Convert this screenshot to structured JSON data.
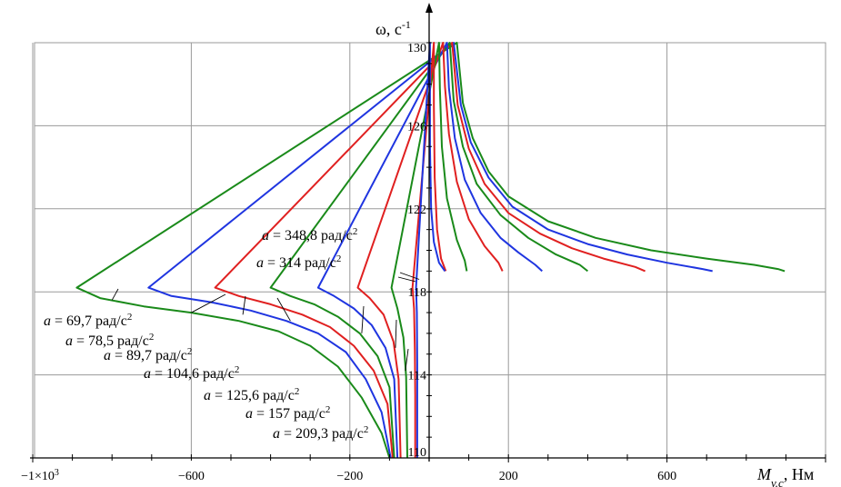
{
  "chart_data": {
    "type": "line",
    "xlabel": "M",
    "xlabel_sub": "v.c",
    "xlabel_unit": ", Нм",
    "ylabel": "ω, с",
    "ylabel_sup": "-1",
    "xlim": [
      -1000,
      1000
    ],
    "ylim": [
      110,
      130
    ],
    "grid": true,
    "x_tick_labels": [
      {
        "v": -1000,
        "base": "−1×10",
        "sup": "3"
      },
      {
        "v": -600,
        "base": "−600",
        "sup": ""
      },
      {
        "v": -200,
        "base": "−200",
        "sup": ""
      },
      {
        "v": 200,
        "base": "200",
        "sup": ""
      },
      {
        "v": 600,
        "base": "600",
        "sup": ""
      }
    ],
    "y_tick_labels": [
      {
        "v": 110,
        "t": "110"
      },
      {
        "v": 114,
        "t": "114"
      },
      {
        "v": 118,
        "t": "118"
      },
      {
        "v": 122,
        "t": "122"
      },
      {
        "v": 126,
        "t": "126"
      },
      {
        "v": 130,
        "t": "130"
      }
    ],
    "series": [
      {
        "name": "a = 69,7 рад/с2",
        "color": "#1a8a1a",
        "upper": [
          [
            897,
            119.0
          ],
          [
            880,
            119.1
          ],
          [
            820,
            119.3
          ],
          [
            700,
            119.6
          ],
          [
            560,
            120.0
          ],
          [
            420,
            120.6
          ],
          [
            300,
            121.4
          ],
          [
            200,
            122.6
          ],
          [
            150,
            123.8
          ],
          [
            110,
            125.4
          ],
          [
            85,
            127.1
          ],
          [
            70,
            130
          ]
        ],
        "lower": [
          [
            -889,
            118.2
          ],
          [
            -830,
            117.7
          ],
          [
            -720,
            117.3
          ],
          [
            -600,
            117.0
          ],
          [
            -480,
            116.6
          ],
          [
            -380,
            116.1
          ],
          [
            -300,
            115.4
          ],
          [
            -230,
            114.4
          ],
          [
            -170,
            112.9
          ],
          [
            -120,
            111.2
          ],
          [
            -100,
            110
          ]
        ]
      },
      {
        "name": "a = 78,5 рад/с2",
        "color": "#1f35e0",
        "upper": [
          [
            715,
            119.0
          ],
          [
            690,
            119.1
          ],
          [
            600,
            119.4
          ],
          [
            500,
            119.8
          ],
          [
            400,
            120.3
          ],
          [
            300,
            121.0
          ],
          [
            210,
            122.1
          ],
          [
            150,
            123.5
          ],
          [
            105,
            125.2
          ],
          [
            80,
            127.0
          ],
          [
            62,
            130
          ]
        ],
        "lower": [
          [
            -708,
            118.2
          ],
          [
            -650,
            117.8
          ],
          [
            -550,
            117.5
          ],
          [
            -450,
            117.1
          ],
          [
            -360,
            116.6
          ],
          [
            -280,
            116.0
          ],
          [
            -210,
            115.1
          ],
          [
            -160,
            113.8
          ],
          [
            -120,
            112.2
          ],
          [
            -97,
            110
          ]
        ]
      },
      {
        "name": "a = 89,7 рад/с2",
        "color": "#e02020",
        "upper": [
          [
            545,
            119.0
          ],
          [
            520,
            119.2
          ],
          [
            440,
            119.6
          ],
          [
            360,
            120.1
          ],
          [
            280,
            120.8
          ],
          [
            200,
            121.8
          ],
          [
            140,
            123.2
          ],
          [
            100,
            124.9
          ],
          [
            72,
            127.0
          ],
          [
            58,
            130
          ]
        ],
        "lower": [
          [
            -540,
            118.2
          ],
          [
            -480,
            117.8
          ],
          [
            -400,
            117.4
          ],
          [
            -320,
            116.9
          ],
          [
            -250,
            116.3
          ],
          [
            -190,
            115.4
          ],
          [
            -140,
            114.2
          ],
          [
            -105,
            112.6
          ],
          [
            -92,
            110
          ]
        ]
      },
      {
        "name": "a = 104,6 рад/с2",
        "color": "#1a8a1a",
        "upper": [
          [
            400,
            119.0
          ],
          [
            380,
            119.3
          ],
          [
            320,
            119.8
          ],
          [
            250,
            120.6
          ],
          [
            180,
            121.7
          ],
          [
            120,
            123.2
          ],
          [
            85,
            125.0
          ],
          [
            62,
            127.2
          ],
          [
            52,
            130
          ]
        ],
        "lower": [
          [
            -400,
            118.2
          ],
          [
            -350,
            117.8
          ],
          [
            -290,
            117.4
          ],
          [
            -230,
            116.8
          ],
          [
            -175,
            116.0
          ],
          [
            -130,
            114.9
          ],
          [
            -100,
            113.4
          ],
          [
            -88,
            110
          ]
        ]
      },
      {
        "name": "a = 125,6 рад/с2",
        "color": "#1f35e0",
        "upper": [
          [
            285,
            119.0
          ],
          [
            268,
            119.3
          ],
          [
            225,
            119.9
          ],
          [
            180,
            120.6
          ],
          [
            130,
            121.8
          ],
          [
            90,
            123.4
          ],
          [
            65,
            125.4
          ],
          [
            50,
            127.8
          ],
          [
            45,
            130
          ]
        ],
        "lower": [
          [
            -280,
            118.2
          ],
          [
            -240,
            117.8
          ],
          [
            -190,
            117.2
          ],
          [
            -145,
            116.4
          ],
          [
            -110,
            115.3
          ],
          [
            -88,
            113.8
          ],
          [
            -80,
            110
          ]
        ]
      },
      {
        "name": "a = 157 рад/с2",
        "color": "#e02020",
        "upper": [
          [
            185,
            119.0
          ],
          [
            175,
            119.4
          ],
          [
            140,
            120.2
          ],
          [
            100,
            121.5
          ],
          [
            70,
            123.3
          ],
          [
            50,
            125.6
          ],
          [
            40,
            127.9
          ],
          [
            35,
            130
          ]
        ],
        "lower": [
          [
            -180,
            118.2
          ],
          [
            -150,
            117.7
          ],
          [
            -115,
            116.9
          ],
          [
            -90,
            115.6
          ],
          [
            -77,
            113.8
          ],
          [
            -72,
            110
          ]
        ]
      },
      {
        "name": "a = 209,3 рад/с2",
        "color": "#1a8a1a",
        "upper": [
          [
            95,
            119.0
          ],
          [
            90,
            119.5
          ],
          [
            70,
            120.5
          ],
          [
            45,
            122.5
          ],
          [
            32,
            125.0
          ],
          [
            27,
            127.8
          ],
          [
            25,
            130
          ]
        ],
        "lower": [
          [
            -95,
            118.2
          ],
          [
            -80,
            117.2
          ],
          [
            -65,
            115.8
          ],
          [
            -58,
            113.9
          ],
          [
            -55,
            110
          ]
        ]
      },
      {
        "name": "a = 314 рад/с2",
        "color": "#e02020",
        "upper": [
          [
            42,
            119.0
          ],
          [
            30,
            119.6
          ],
          [
            20,
            121.0
          ],
          [
            14,
            123.5
          ],
          [
            12,
            127.0
          ],
          [
            12,
            130
          ]
        ],
        "lower": [
          [
            -42,
            118.2
          ],
          [
            -38,
            117.2
          ],
          [
            -36,
            115.2
          ],
          [
            -35,
            113.0
          ],
          [
            -35,
            110
          ]
        ]
      },
      {
        "name": "a = 348,8 рад/с2",
        "color": "#1f35e0",
        "upper": [
          [
            40,
            119.0
          ],
          [
            25,
            119.4
          ],
          [
            12,
            120.4
          ],
          [
            5,
            122.0
          ],
          [
            2,
            125.0
          ],
          [
            2,
            130
          ]
        ],
        "lower": [
          [
            -33,
            118.2
          ],
          [
            -31,
            117.0
          ],
          [
            -30,
            114.5
          ],
          [
            -30,
            112.0
          ],
          [
            -30,
            110
          ]
        ]
      }
    ],
    "annotations": [
      {
        "pre": "a",
        "mid": " = 348,8 рад/с",
        "sup": "2",
        "to": [
          -25,
          118.6
        ]
      },
      {
        "pre": "a",
        "mid": " = 314 рад/с",
        "sup": "2",
        "to": [
          -35,
          118.5
        ]
      },
      {
        "pre": "a",
        "mid": " = 69,7 рад/с",
        "sup": "2",
        "to": [
          -800,
          117.6
        ]
      },
      {
        "pre": "a",
        "mid": " = 78,5 рад/с",
        "sup": "2",
        "to": [
          -600,
          117.0
        ]
      },
      {
        "pre": "a",
        "mid": " = 89,7 рад/с",
        "sup": "2",
        "to": [
          -470,
          116.9
        ]
      },
      {
        "pre": "a",
        "mid": " = 104,6 рад/с",
        "sup": "2",
        "to": [
          -350,
          116.6
        ]
      },
      {
        "pre": "a",
        "mid": " = 125,6 рад/с",
        "sup": "2",
        "to": [
          -170,
          116.0
        ]
      },
      {
        "pre": "a",
        "mid": " = 157 рад/с",
        "sup": "2",
        "to": [
          -85,
          115.3
        ]
      },
      {
        "pre": "a",
        "mid": " = 209,3 рад/с",
        "sup": "2",
        "to": [
          -60,
          114.2
        ]
      }
    ]
  }
}
